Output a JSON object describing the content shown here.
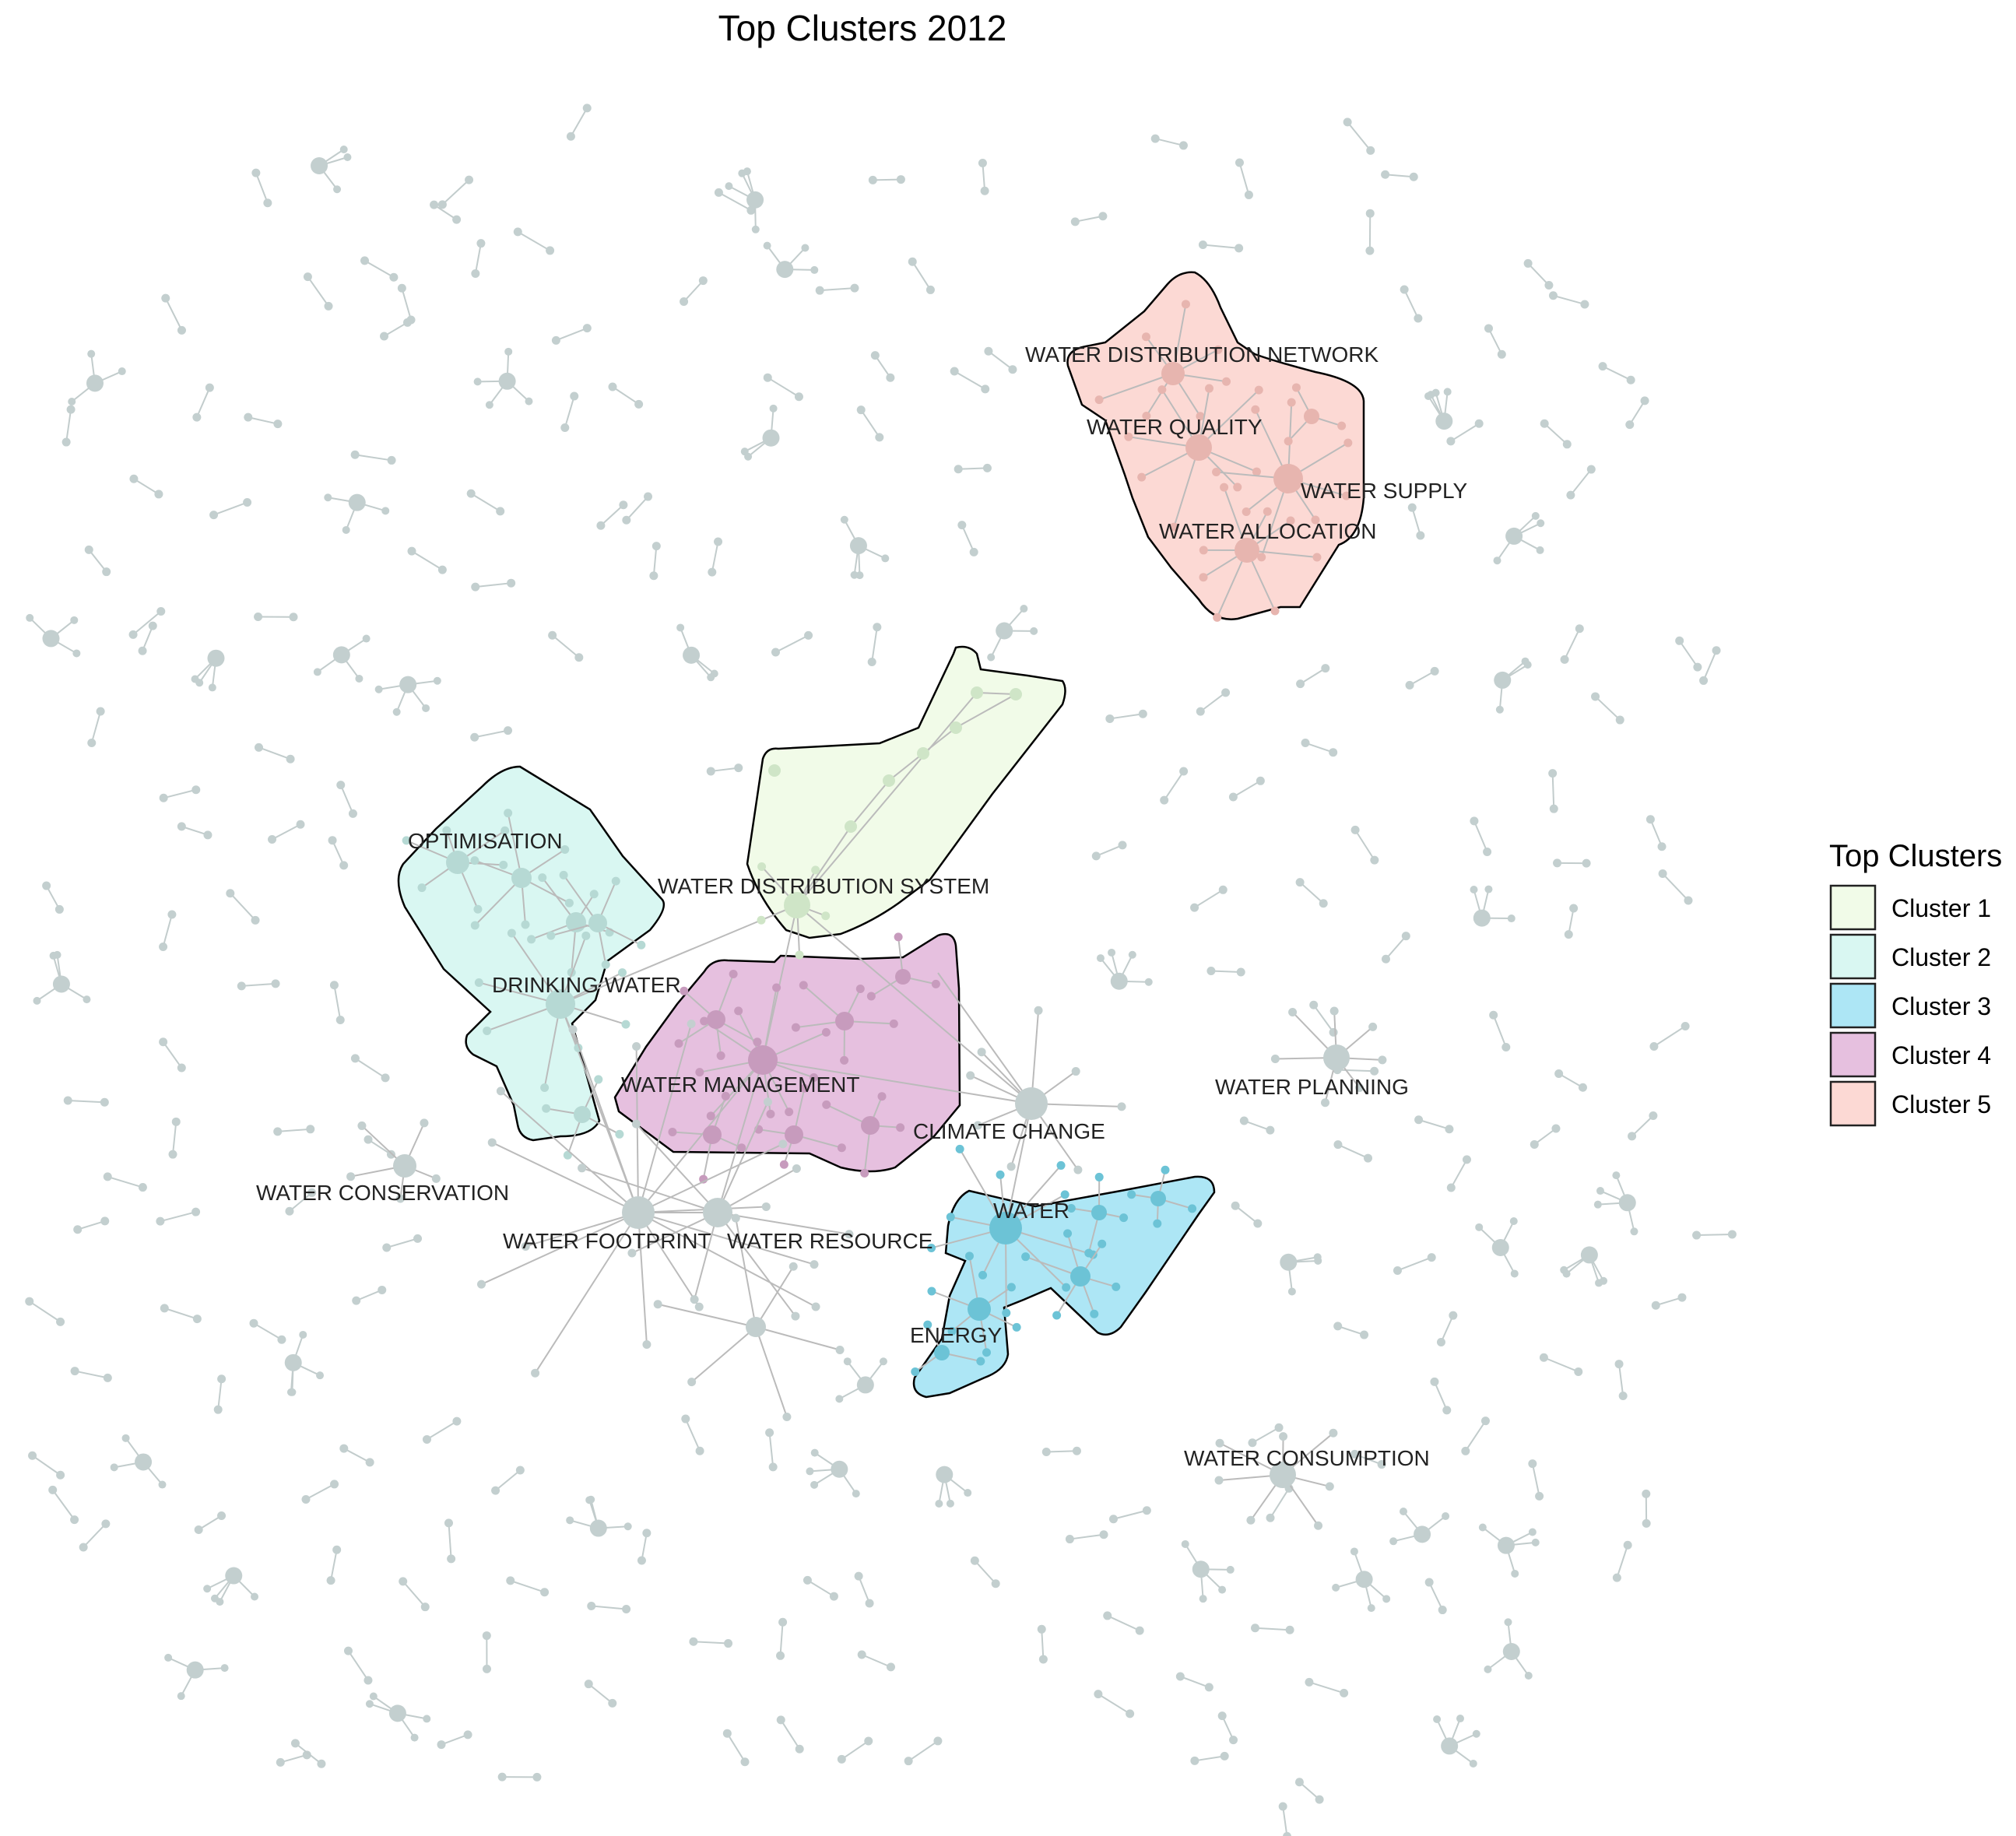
{
  "title": "Top Clusters 2012",
  "legend": {
    "title": "Top Clusters",
    "items": [
      {
        "label": "Cluster 1",
        "color": "#f1fbe8"
      },
      {
        "label": "Cluster 2",
        "color": "#d9f7f2"
      },
      {
        "label": "Cluster 3",
        "color": "#ade6f5"
      },
      {
        "label": "Cluster 4",
        "color": "#e6c0df"
      },
      {
        "label": "Cluster 5",
        "color": "#fcd9d4"
      }
    ]
  },
  "labels": {
    "water_distribution_network": "WATER DISTRIBUTION NETWORK",
    "water_quality": "WATER QUALITY",
    "water_supply": "WATER SUPPLY",
    "water_allocation": "WATER ALLOCATION",
    "optimisation": "OPTIMISATION",
    "water_distribution_system": "WATER DISTRIBUTION SYSTEM",
    "drinking_water": "DRINKING WATER",
    "water_management": "WATER MANAGEMENT",
    "climate_change": "CLIMATE CHANGE",
    "water_planning": "WATER PLANNING",
    "water_conservation": "WATER CONSERVATION",
    "water": "WATER",
    "water_footprint": "WATER FOOTPRINT",
    "water_resource": "WATER RESOURCE",
    "energy": "ENERGY",
    "water_consumption": "WATER CONSUMPTION"
  },
  "colors": {
    "node": "#c3cfcf",
    "edge": "#c2cccc",
    "cluster3_node": "#6cc3d6",
    "cluster4_node": "#c79bbd",
    "cluster5_node": "#e7b5af"
  }
}
